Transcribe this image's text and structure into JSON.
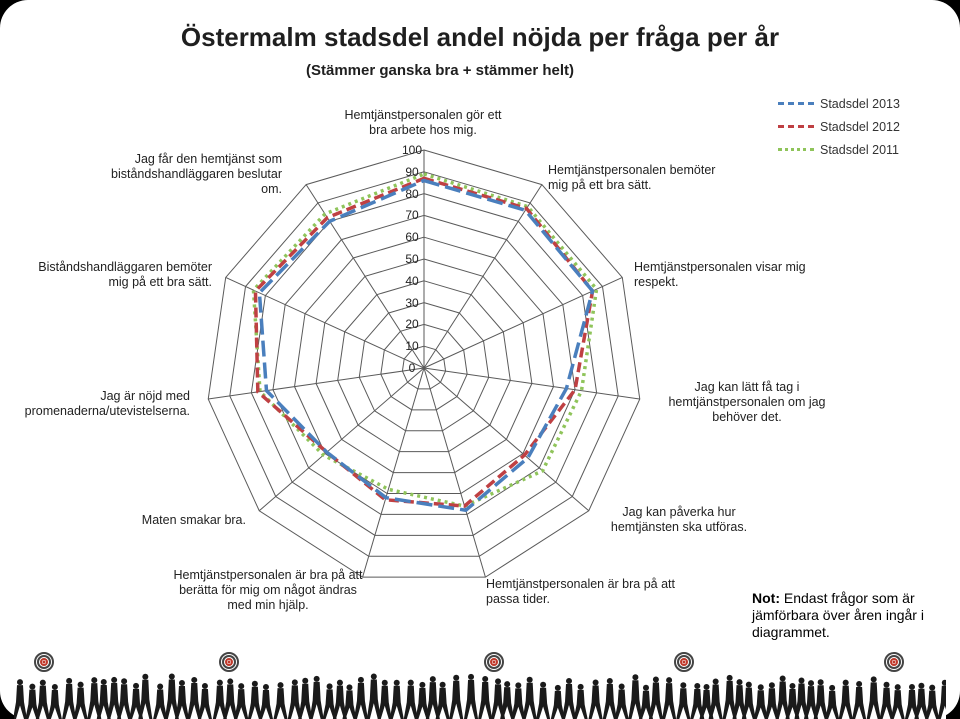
{
  "title": "Östermalm stadsdel andel nöjda per fråga per år",
  "subtitle": "(Stämmer ganska bra + stämmer helt)",
  "chart_data": {
    "type": "radar",
    "title": "Östermalm stadsdel andel nöjda per fråga per år",
    "subtitle": "(Stämmer ganska bra + stämmer helt)",
    "rlim": [
      0,
      100
    ],
    "ticks": [
      "0",
      "10",
      "20",
      "30",
      "40",
      "50",
      "60",
      "70",
      "80",
      "90",
      "100"
    ],
    "categories": [
      "Hemtjänstpersonalen gör ett bra arbete hos mig.",
      "Hemtjänstpersonalen bemöter mig på ett bra sätt.",
      "Hemtjänstpersonalen visar mig respekt.",
      "Jag kan lätt få tag i hemtjänstpersonalen om jag behöver det.",
      "Jag kan påverka hur hemtjänsten ska utföras.",
      "Hemtjänstpersonalen är bra på att passa tider.",
      "Hemtjänstpersonalen är bra på att berätta för mig om något ändras med min hjälp.",
      "Maten smakar bra.",
      "Jag är nöjd med promenaderna/utevistelserna.",
      "Biståndshandläggaren bemöter mig på ett bra sätt.",
      "Jag får den hemtjänst som biståndshandläggaren beslutar om."
    ],
    "series": [
      {
        "name": "Stadsdel 2013",
        "color": "#4a7fbd",
        "dash": "long-dash",
        "values": [
          86,
          86,
          85,
          66,
          63,
          68,
          62,
          59,
          73,
          83,
          80
        ]
      },
      {
        "name": "Stadsdel 2012",
        "color": "#bf4043",
        "dash": "dash",
        "values": [
          87,
          87,
          85,
          70,
          61,
          66,
          63,
          59,
          77,
          85,
          82
        ]
      },
      {
        "name": "Stadsdel 2011",
        "color": "#8fc45a",
        "dash": "dot",
        "values": [
          89,
          88,
          87,
          73,
          72,
          66,
          58,
          61,
          76,
          86,
          84
        ]
      }
    ],
    "legend_position": "top-right",
    "grid": true
  },
  "legend": [
    {
      "label": "Stadsdel 2013",
      "color": "#4a7fbd",
      "style": "dashed"
    },
    {
      "label": "Stadsdel 2012",
      "color": "#bf4043",
      "style": "dashed"
    },
    {
      "label": "Stadsdel 2011",
      "color": "#8fc45a",
      "style": "dotted"
    }
  ],
  "axis_labels": {
    "a0": "Hemtjänstpersonalen gör ett bra arbete hos mig.",
    "a1": "Hemtjänstpersonalen bemöter mig på ett bra sätt.",
    "a2": "Hemtjänstpersonalen visar mig respekt.",
    "a3": "Jag kan lätt få tag i hemtjänstpersonalen om jag behöver det.",
    "a4": "Jag kan påverka hur hemtjänsten ska utföras.",
    "a5": "Hemtjänstpersonalen är bra på att passa tider.",
    "a6": "Hemtjänstpersonalen är bra på att berätta för mig om något ändras med min hjälp.",
    "a7": "Maten smakar bra.",
    "a8": "Jag är nöjd med promenaderna/utevistelserna.",
    "a9": "Biståndshandläggaren bemöter mig på ett bra sätt.",
    "a10": "Jag får den hemtjänst som biståndshandläggaren beslutar om."
  },
  "note": {
    "prefix": "Not:",
    "text": " Endast frågor som är jämförbara över åren ingår i diagrammet."
  },
  "footer": {
    "icon": "walking-people-target-banner"
  }
}
